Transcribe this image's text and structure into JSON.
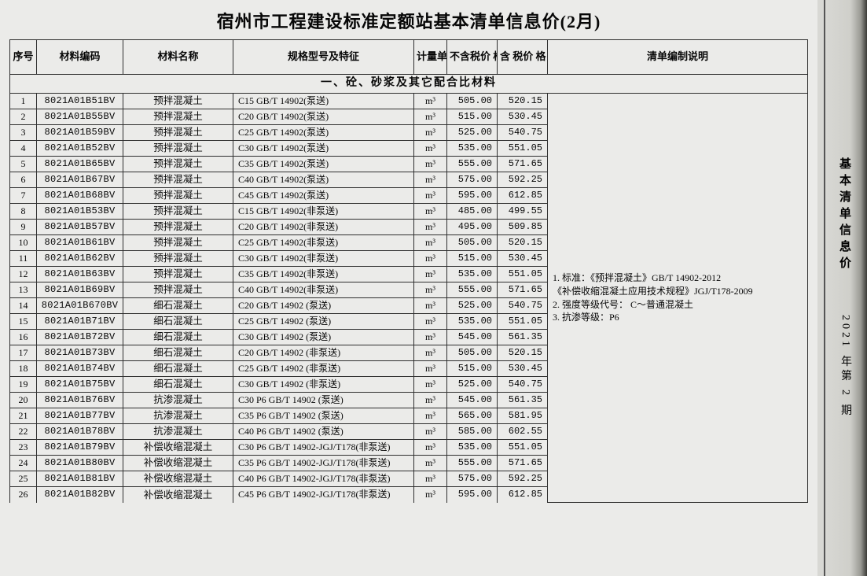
{
  "title": "宿州市工程建设标准定额站基本清单信息价(2月)",
  "side_label": "基本清单信息价",
  "side_issue": "2021 年第 2 期",
  "columns": {
    "idx": "序号",
    "code": "材料编码",
    "name": "材料名称",
    "spec": "规格型号及特征",
    "unit": "计量单位",
    "price_ex": "不含税价 格",
    "price_in": "含 税价 格",
    "remark": "清单编制说明"
  },
  "col_widths": {
    "idx": 34,
    "code": 110,
    "name": 140,
    "spec": 230,
    "unit": 42,
    "price_ex": 64,
    "price_in": 64,
    "remark": 300
  },
  "section_title": "一、砼、砂浆及其它配合比材料",
  "notes_lines": [
    "1. 标准：《预拌混凝土》GB/T 14902-2012",
    "《补偿收缩混凝土应用技术规程》JGJ/T178-2009",
    "2. 强度等级代号： C～普通混凝土",
    "3. 抗渗等级：P6"
  ],
  "rows": [
    {
      "i": "1",
      "c": "8021A01B51BV",
      "n": "预拌混凝土",
      "s": "C15  GB/T 14902(泵送)",
      "u": "m³",
      "p1": "505.00",
      "p2": "520.15"
    },
    {
      "i": "2",
      "c": "8021A01B55BV",
      "n": "预拌混凝土",
      "s": "C20  GB/T 14902(泵送)",
      "u": "m³",
      "p1": "515.00",
      "p2": "530.45"
    },
    {
      "i": "3",
      "c": "8021A01B59BV",
      "n": "预拌混凝土",
      "s": "C25  GB/T 14902(泵送)",
      "u": "m³",
      "p1": "525.00",
      "p2": "540.75"
    },
    {
      "i": "4",
      "c": "8021A01B52BV",
      "n": "预拌混凝土",
      "s": "C30  GB/T 14902(泵送)",
      "u": "m³",
      "p1": "535.00",
      "p2": "551.05"
    },
    {
      "i": "5",
      "c": "8021A01B65BV",
      "n": "预拌混凝土",
      "s": "C35  GB/T 14902(泵送)",
      "u": "m³",
      "p1": "555.00",
      "p2": "571.65"
    },
    {
      "i": "6",
      "c": "8021A01B67BV",
      "n": "预拌混凝土",
      "s": "C40  GB/T 14902(泵送)",
      "u": "m³",
      "p1": "575.00",
      "p2": "592.25"
    },
    {
      "i": "7",
      "c": "8021A01B68BV",
      "n": "预拌混凝土",
      "s": "C45  GB/T 14902(泵送)",
      "u": "m³",
      "p1": "595.00",
      "p2": "612.85"
    },
    {
      "i": "8",
      "c": "8021A01B53BV",
      "n": "预拌混凝土",
      "s": "C15  GB/T 14902(非泵送)",
      "u": "m³",
      "p1": "485.00",
      "p2": "499.55"
    },
    {
      "i": "9",
      "c": "8021A01B57BV",
      "n": "预拌混凝土",
      "s": "C20  GB/T 14902(非泵送)",
      "u": "m³",
      "p1": "495.00",
      "p2": "509.85"
    },
    {
      "i": "10",
      "c": "8021A01B61BV",
      "n": "预拌混凝土",
      "s": "C25  GB/T 14902(非泵送)",
      "u": "m³",
      "p1": "505.00",
      "p2": "520.15"
    },
    {
      "i": "11",
      "c": "8021A01B62BV",
      "n": "预拌混凝土",
      "s": "C30  GB/T 14902(非泵送)",
      "u": "m³",
      "p1": "515.00",
      "p2": "530.45"
    },
    {
      "i": "12",
      "c": "8021A01B63BV",
      "n": "预拌混凝土",
      "s": "C35  GB/T 14902(非泵送)",
      "u": "m³",
      "p1": "535.00",
      "p2": "551.05"
    },
    {
      "i": "13",
      "c": "8021A01B69BV",
      "n": "预拌混凝土",
      "s": "C40  GB/T 14902(非泵送)",
      "u": "m³",
      "p1": "555.00",
      "p2": "571.65"
    },
    {
      "i": "14",
      "c": "8021A01B670BV",
      "n": "细石混凝土",
      "s": "C20  GB/T 14902 (泵送)",
      "u": "m³",
      "p1": "525.00",
      "p2": "540.75"
    },
    {
      "i": "15",
      "c": "8021A01B71BV",
      "n": "细石混凝土",
      "s": "C25  GB/T 14902 (泵送)",
      "u": "m³",
      "p1": "535.00",
      "p2": "551.05"
    },
    {
      "i": "16",
      "c": "8021A01B72BV",
      "n": "细石混凝土",
      "s": "C30  GB/T 14902 (泵送)",
      "u": "m³",
      "p1": "545.00",
      "p2": "561.35"
    },
    {
      "i": "17",
      "c": "8021A01B73BV",
      "n": "细石混凝土",
      "s": "C20  GB/T 14902 (非泵送)",
      "u": "m³",
      "p1": "505.00",
      "p2": "520.15"
    },
    {
      "i": "18",
      "c": "8021A01B74BV",
      "n": "细石混凝土",
      "s": "C25  GB/T 14902 (非泵送)",
      "u": "m³",
      "p1": "515.00",
      "p2": "530.45"
    },
    {
      "i": "19",
      "c": "8021A01B75BV",
      "n": "细石混凝土",
      "s": "C30  GB/T 14902 (非泵送)",
      "u": "m³",
      "p1": "525.00",
      "p2": "540.75"
    },
    {
      "i": "20",
      "c": "8021A01B76BV",
      "n": "抗渗混凝土",
      "s": "C30  P6  GB/T 14902 (泵送)",
      "u": "m³",
      "p1": "545.00",
      "p2": "561.35"
    },
    {
      "i": "21",
      "c": "8021A01B77BV",
      "n": "抗渗混凝土",
      "s": "C35  P6  GB/T 14902 (泵送)",
      "u": "m³",
      "p1": "565.00",
      "p2": "581.95"
    },
    {
      "i": "22",
      "c": "8021A01B78BV",
      "n": "抗渗混凝土",
      "s": "C40  P6  GB/T 14902 (泵送)",
      "u": "m³",
      "p1": "585.00",
      "p2": "602.55"
    },
    {
      "i": "23",
      "c": "8021A01B79BV",
      "n": "补偿收缩混凝土",
      "s": "C30  P6  GB/T 14902-JGJ/T178(非泵送)",
      "u": "m³",
      "p1": "535.00",
      "p2": "551.05"
    },
    {
      "i": "24",
      "c": "8021A01B80BV",
      "n": "补偿收缩混凝土",
      "s": "C35  P6  GB/T 14902-JGJ/T178(非泵送)",
      "u": "m³",
      "p1": "555.00",
      "p2": "571.65"
    },
    {
      "i": "25",
      "c": "8021A01B81BV",
      "n": "补偿收缩混凝土",
      "s": "C40  P6  GB/T 14902-JGJ/T178(非泵送)",
      "u": "m³",
      "p1": "575.00",
      "p2": "592.25"
    },
    {
      "i": "26",
      "c": "8021A01B82BV",
      "n": "补偿收缩混凝土",
      "s": "C45  P6  GB/T 14902-JGJ/T178(非泵送)",
      "u": "m³",
      "p1": "595.00",
      "p2": "612.85"
    }
  ]
}
